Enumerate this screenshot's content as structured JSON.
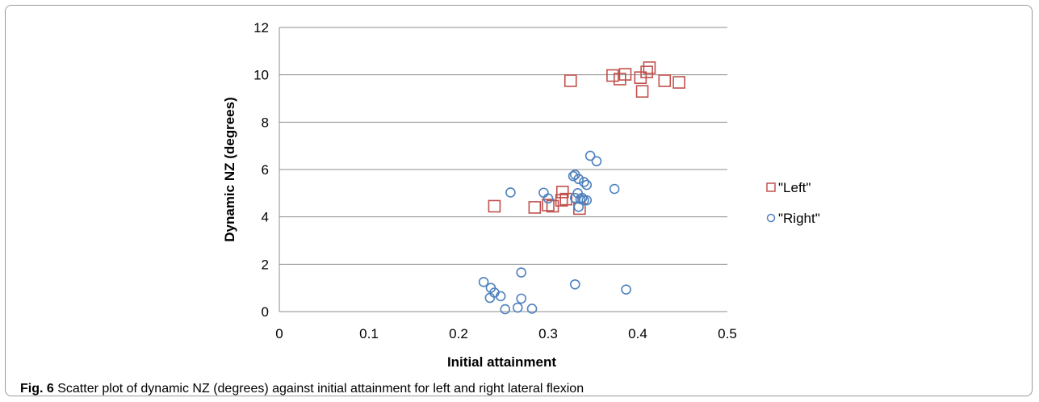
{
  "caption": {
    "label": "Fig. 6",
    "text": " Scatter plot of dynamic NZ (degrees) against initial attainment for left and right lateral flexion"
  },
  "chart_data": {
    "type": "scatter",
    "title": "",
    "xlabel": "Initial attainment",
    "ylabel": "Dynamic NZ (degrees)",
    "xlim": [
      0,
      0.5
    ],
    "ylim": [
      0,
      12
    ],
    "xticks": [
      "0",
      "0.1",
      "0.2",
      "0.3",
      "0.4",
      "0.5"
    ],
    "yticks": [
      "0",
      "2",
      "4",
      "6",
      "8",
      "10",
      "12"
    ],
    "grid": "horizontal",
    "legend_position": "right",
    "series": [
      {
        "name": "\"Left\"",
        "marker": "square",
        "color": "#c0504d",
        "points": [
          [
            0.24,
            4.45
          ],
          [
            0.285,
            4.4
          ],
          [
            0.3,
            4.5
          ],
          [
            0.305,
            4.45
          ],
          [
            0.315,
            4.7
          ],
          [
            0.316,
            5.05
          ],
          [
            0.32,
            4.75
          ],
          [
            0.335,
            4.35
          ],
          [
            0.325,
            9.75
          ],
          [
            0.372,
            9.97
          ],
          [
            0.38,
            9.82
          ],
          [
            0.386,
            10.02
          ],
          [
            0.403,
            9.88
          ],
          [
            0.405,
            9.3
          ],
          [
            0.41,
            10.12
          ],
          [
            0.413,
            10.3
          ],
          [
            0.43,
            9.75
          ],
          [
            0.446,
            9.68
          ]
        ]
      },
      {
        "name": "\"Right\"",
        "marker": "circle",
        "color": "#4f81bd",
        "points": [
          [
            0.228,
            1.25
          ],
          [
            0.235,
            0.58
          ],
          [
            0.236,
            1.0
          ],
          [
            0.24,
            0.8
          ],
          [
            0.247,
            0.65
          ],
          [
            0.252,
            0.1
          ],
          [
            0.258,
            5.03
          ],
          [
            0.266,
            0.17
          ],
          [
            0.27,
            1.65
          ],
          [
            0.27,
            0.55
          ],
          [
            0.282,
            0.12
          ],
          [
            0.295,
            5.02
          ],
          [
            0.3,
            4.78
          ],
          [
            0.328,
            5.72
          ],
          [
            0.33,
            5.78
          ],
          [
            0.334,
            5.6
          ],
          [
            0.33,
            1.15
          ],
          [
            0.33,
            4.8
          ],
          [
            0.333,
            5.0
          ],
          [
            0.334,
            4.42
          ],
          [
            0.336,
            4.75
          ],
          [
            0.338,
            4.8
          ],
          [
            0.34,
            4.7
          ],
          [
            0.343,
            4.7
          ],
          [
            0.34,
            5.47
          ],
          [
            0.343,
            5.35
          ],
          [
            0.347,
            6.58
          ],
          [
            0.354,
            6.35
          ],
          [
            0.374,
            5.18
          ],
          [
            0.387,
            0.93
          ]
        ]
      }
    ]
  }
}
